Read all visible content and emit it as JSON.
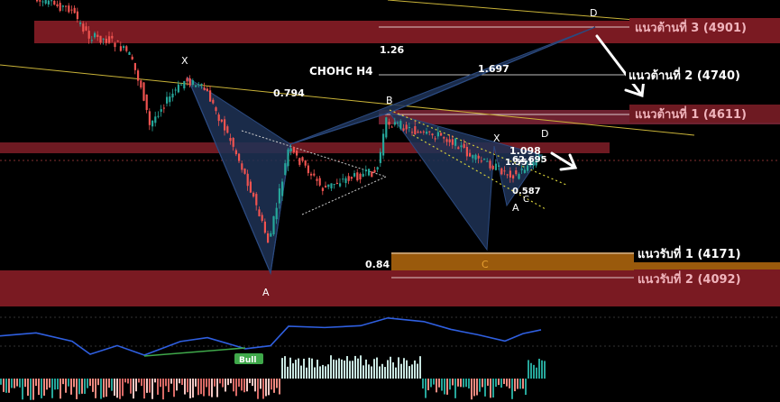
{
  "chart_data": {
    "type": "candlestick-annotated",
    "title": "CHOHC H4",
    "zones": {
      "resistance": [
        {
          "label": "แนวต้านที่ 3 (4901)",
          "kind": "resistance-zone"
        },
        {
          "label": "แนวต้านที่ 2 (4740)",
          "kind": "line"
        },
        {
          "label": "แนวต้านที่ 1 (4611)",
          "kind": "resistance-zone"
        }
      ],
      "support": [
        {
          "label": "แนวรับที่ 1 (4171)",
          "kind": "support-zone"
        },
        {
          "label": "แนวรับที่ 2 (4092)",
          "kind": "support-zone"
        }
      ]
    },
    "harmonic_left": {
      "points": [
        "X",
        "A",
        "B",
        "C",
        "D"
      ]
    },
    "harmonic_right": {
      "points": [
        "X",
        "A",
        "B",
        "C",
        "D"
      ]
    },
    "fib_ratios": [
      "0.794",
      "1.26",
      "1.697",
      "0.84",
      "1.098",
      "1.551",
      "0.587",
      "62.695"
    ],
    "indicator_badge": "Bull",
    "colors": {
      "up": "#26a69a",
      "down": "#ef5350",
      "resistance_zone": "#7a1a22",
      "support_zone": "#b8700c",
      "harmonic_fill": "#1e3356",
      "rsi": "#2f5fe0",
      "trend": "#c9b338"
    }
  }
}
